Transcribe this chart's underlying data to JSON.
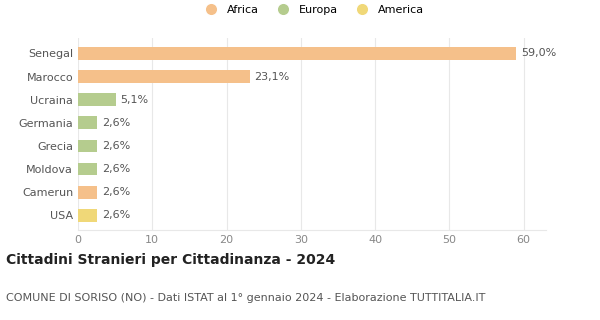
{
  "categories": [
    "USA",
    "Camerun",
    "Moldova",
    "Grecia",
    "Germania",
    "Ucraina",
    "Marocco",
    "Senegal"
  ],
  "values": [
    2.6,
    2.6,
    2.6,
    2.6,
    2.6,
    5.1,
    23.1,
    59.0
  ],
  "labels": [
    "2,6%",
    "2,6%",
    "2,6%",
    "2,6%",
    "2,6%",
    "5,1%",
    "23,1%",
    "59,0%"
  ],
  "continent": [
    "America",
    "Africa",
    "Europa",
    "Europa",
    "Europa",
    "Europa",
    "Africa",
    "Africa"
  ],
  "africa_color": "#f5c08a",
  "europa_color": "#b5cc8e",
  "america_color": "#f0d878",
  "title": "Cittadini Stranieri per Cittadinanza - 2024",
  "subtitle": "COMUNE DI SORISO (NO) - Dati ISTAT al 1° gennaio 2024 - Elaborazione TUTTITALIA.IT",
  "xlim": [
    0,
    63
  ],
  "xticks": [
    0,
    10,
    20,
    30,
    40,
    50,
    60
  ],
  "background_color": "#ffffff",
  "grid_color": "#e8e8e8",
  "title_fontsize": 10,
  "subtitle_fontsize": 8,
  "label_fontsize": 8,
  "tick_fontsize": 8,
  "bar_height": 0.55
}
